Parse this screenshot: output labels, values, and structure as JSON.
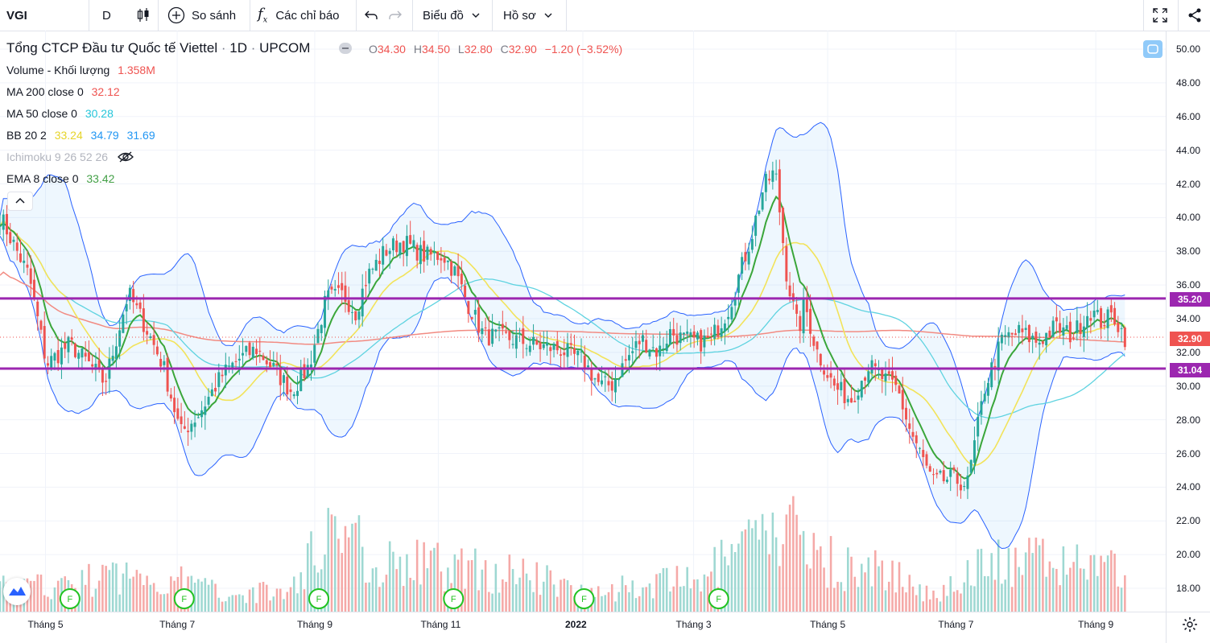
{
  "toolbar": {
    "symbol": "VGI",
    "interval": "D",
    "compare_label": "So sánh",
    "indicators_label": "Các chỉ báo",
    "chart_menu_label": "Biểu đồ",
    "profile_menu_label": "Hồ sơ"
  },
  "header": {
    "title": "Tổng CTCP Đầu tư Quốc tế Viettel",
    "interval": "1D",
    "exchange": "UPCOM",
    "o_label": "O",
    "o_value": "34.30",
    "h_label": "H",
    "h_value": "34.50",
    "l_label": "L",
    "l_value": "32.80",
    "c_label": "C",
    "c_value": "32.90",
    "change": "−1.20 (−3.52%)"
  },
  "indicators": {
    "volume_label": "Volume - Khối lượng",
    "volume_value": "1.358M",
    "ma200_label": "MA 200 close 0",
    "ma200_value": "32.12",
    "ma50_label": "MA 50 close 0",
    "ma50_value": "30.28",
    "bb_label": "BB 20 2",
    "bb_basis": "33.24",
    "bb_upper": "34.79",
    "bb_lower": "31.69",
    "ichimoku_label": "Ichimoku 9 26 52 26",
    "ema_label": "EMA 8 close 0",
    "ema_value": "33.42"
  },
  "price_tags": {
    "resistance": "35.20",
    "current": "32.90",
    "support": "31.04"
  },
  "colors": {
    "up": "#26a69a",
    "down": "#ef5350",
    "ma200": "#f28b82",
    "ma50": "#5fd3e0",
    "bb_basis": "#f2e35a",
    "bb_band": "#2962ff",
    "ema": "#3aa63a",
    "hline": "#9c27b0",
    "current": "#ef5350"
  },
  "chart_data": {
    "type": "candlestick",
    "y_axis_ticks": [
      "50.00",
      "48.00",
      "46.00",
      "44.00",
      "42.00",
      "40.00",
      "38.00",
      "36.00",
      "34.00",
      "32.00",
      "30.00",
      "28.00",
      "26.00",
      "24.00",
      "22.00",
      "20.00",
      "18.00"
    ],
    "x_axis_labels": [
      "Tháng 5",
      "Tháng 7",
      "Tháng 9",
      "Tháng 11",
      "2022",
      "Tháng 3",
      "Tháng 5",
      "Tháng 7",
      "Tháng 9"
    ],
    "ylim": [
      17,
      51
    ],
    "horizontal_lines": [
      35.2,
      31.04
    ],
    "current_price": 32.9,
    "event_marker": "F",
    "event_marker_x": [
      0.06,
      0.2,
      0.365,
      0.53,
      0.69,
      0.855
    ],
    "price_path": [
      [
        0.0,
        40.1
      ],
      [
        0.025,
        36.5
      ],
      [
        0.04,
        31.3
      ],
      [
        0.06,
        32.5
      ],
      [
        0.075,
        31.4
      ],
      [
        0.09,
        30.2
      ],
      [
        0.11,
        35.5
      ],
      [
        0.125,
        33.5
      ],
      [
        0.14,
        31.2
      ],
      [
        0.155,
        27.2
      ],
      [
        0.17,
        28.3
      ],
      [
        0.19,
        30.6
      ],
      [
        0.205,
        31.6
      ],
      [
        0.22,
        32.2
      ],
      [
        0.235,
        31.0
      ],
      [
        0.25,
        29.7
      ],
      [
        0.265,
        31.2
      ],
      [
        0.28,
        35.2
      ],
      [
        0.295,
        35.4
      ],
      [
        0.305,
        34.4
      ],
      [
        0.315,
        36.5
      ],
      [
        0.33,
        38.0
      ],
      [
        0.345,
        38.6
      ],
      [
        0.365,
        37.7
      ],
      [
        0.38,
        37.8
      ],
      [
        0.39,
        36.8
      ],
      [
        0.4,
        35.1
      ],
      [
        0.415,
        33.0
      ],
      [
        0.44,
        32.8
      ],
      [
        0.46,
        32.4
      ],
      [
        0.48,
        32.2
      ],
      [
        0.5,
        31.5
      ],
      [
        0.515,
        30.0
      ],
      [
        0.525,
        30.1
      ],
      [
        0.535,
        31.3
      ],
      [
        0.55,
        32.8
      ],
      [
        0.565,
        32.0
      ],
      [
        0.575,
        33.2
      ],
      [
        0.585,
        32.8
      ],
      [
        0.6,
        32.6
      ],
      [
        0.61,
        32.8
      ],
      [
        0.625,
        34.6
      ],
      [
        0.635,
        36.8
      ],
      [
        0.645,
        39.0
      ],
      [
        0.655,
        41.8
      ],
      [
        0.665,
        42.8
      ],
      [
        0.675,
        36.5
      ],
      [
        0.685,
        33.2
      ],
      [
        0.69,
        35.0
      ],
      [
        0.7,
        32.2
      ],
      [
        0.715,
        30.0
      ],
      [
        0.73,
        29.2
      ],
      [
        0.745,
        31.2
      ],
      [
        0.76,
        30.3
      ],
      [
        0.77,
        29.8
      ],
      [
        0.78,
        27.5
      ],
      [
        0.8,
        24.3
      ],
      [
        0.815,
        24.5
      ],
      [
        0.83,
        24.2
      ],
      [
        0.845,
        30.0
      ],
      [
        0.86,
        32.8
      ],
      [
        0.875,
        33.2
      ],
      [
        0.89,
        32.6
      ],
      [
        0.905,
        33.5
      ],
      [
        0.92,
        33.0
      ],
      [
        0.935,
        34.5
      ],
      [
        0.945,
        33.8
      ],
      [
        0.955,
        34.2
      ],
      [
        0.965,
        32.9
      ]
    ],
    "volume_path": [
      [
        0.0,
        0.16
      ],
      [
        0.05,
        0.17
      ],
      [
        0.1,
        0.24
      ],
      [
        0.15,
        0.21
      ],
      [
        0.2,
        0.12
      ],
      [
        0.25,
        0.14
      ],
      [
        0.285,
        0.63
      ],
      [
        0.32,
        0.34
      ],
      [
        0.37,
        0.31
      ],
      [
        0.4,
        0.29
      ],
      [
        0.45,
        0.25
      ],
      [
        0.5,
        0.14
      ],
      [
        0.55,
        0.17
      ],
      [
        0.6,
        0.22
      ],
      [
        0.64,
        0.42
      ],
      [
        0.68,
        0.55
      ],
      [
        0.72,
        0.3
      ],
      [
        0.76,
        0.26
      ],
      [
        0.8,
        0.11
      ],
      [
        0.84,
        0.31
      ],
      [
        0.9,
        0.33
      ],
      [
        0.94,
        0.34
      ],
      [
        0.965,
        0.26
      ]
    ]
  }
}
